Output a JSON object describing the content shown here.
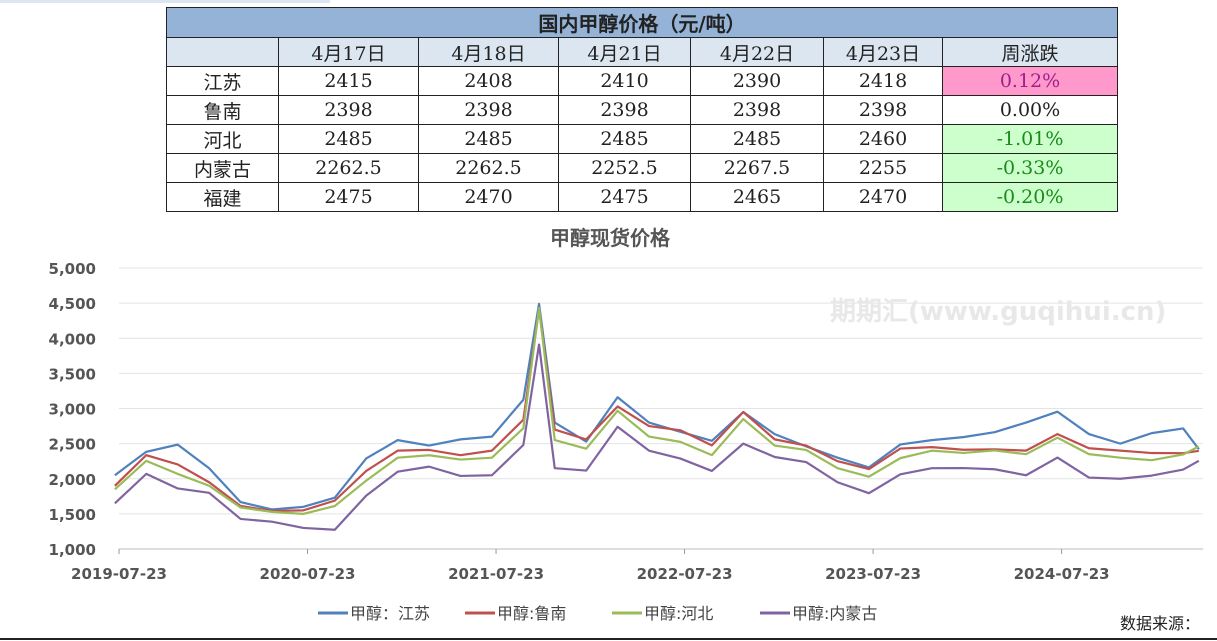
{
  "table": {
    "title": "国内甲醇价格（元/吨）",
    "headers": [
      "",
      "4月17日",
      "4月18日",
      "4月21日",
      "4月22日",
      "4月23日",
      "周涨跌"
    ],
    "rows": [
      {
        "region": "江苏",
        "values": [
          "2415",
          "2408",
          "2410",
          "2390",
          "2418"
        ],
        "change": "0.12%",
        "status": "up"
      },
      {
        "region": "鲁南",
        "values": [
          "2398",
          "2398",
          "2398",
          "2398",
          "2398"
        ],
        "change": "0.00%",
        "status": "flat"
      },
      {
        "region": "河北",
        "values": [
          "2485",
          "2485",
          "2485",
          "2485",
          "2460"
        ],
        "change": "-1.01%",
        "status": "down"
      },
      {
        "region": "内蒙古",
        "values": [
          "2262.5",
          "2262.5",
          "2252.5",
          "2267.5",
          "2255"
        ],
        "change": "-0.33%",
        "status": "down"
      },
      {
        "region": "福建",
        "values": [
          "2475",
          "2470",
          "2475",
          "2465",
          "2470"
        ],
        "change": "-0.20%",
        "status": "down"
      }
    ]
  },
  "source_label": "数据来源：",
  "watermark": "期期汇(www.guqihui.cn)",
  "chart_data": {
    "type": "line",
    "title": "甲醇现货价格",
    "ylim": [
      1000,
      5000
    ],
    "yticks": [
      1000,
      1500,
      2000,
      2500,
      3000,
      3500,
      4000,
      4500,
      5000
    ],
    "ytick_labels": [
      "1,000",
      "1,500",
      "2,000",
      "2,500",
      "3,000",
      "3,500",
      "4,000",
      "4,500",
      "5,000"
    ],
    "xlim": [
      "2019-07-23",
      "2025-04-23"
    ],
    "xtick_labels": [
      "2019-07-23",
      "2020-07-23",
      "2021-07-23",
      "2022-07-23",
      "2023-07-23",
      "2024-07-23"
    ],
    "grid": true,
    "legend": "bottom",
    "x": [
      "2019-07",
      "2019-09",
      "2019-11",
      "2020-01",
      "2020-03",
      "2020-05",
      "2020-07",
      "2020-09",
      "2020-11",
      "2021-01",
      "2021-03",
      "2021-05",
      "2021-07",
      "2021-09",
      "2021-10",
      "2021-11",
      "2022-01",
      "2022-03",
      "2022-05",
      "2022-07",
      "2022-09",
      "2022-11",
      "2023-01",
      "2023-03",
      "2023-05",
      "2023-07",
      "2023-09",
      "2023-11",
      "2024-01",
      "2024-03",
      "2024-05",
      "2024-07",
      "2024-09",
      "2024-11",
      "2025-01",
      "2025-03",
      "2025-04"
    ],
    "series": [
      {
        "name": "甲醇：江苏",
        "color": "#4f81bd",
        "values": [
          2050,
          2350,
          2450,
          2150,
          1700,
          1600,
          1600,
          1700,
          2250,
          2550,
          2500,
          2600,
          2600,
          3100,
          4450,
          2800,
          2550,
          3200,
          2800,
          2650,
          2500,
          2950,
          2650,
          2500,
          2300,
          2150,
          2450,
          2550,
          2600,
          2700,
          2800,
          2950,
          2600,
          2500,
          2650,
          2750,
          2420
        ]
      },
      {
        "name": "甲醇:鲁南",
        "color": "#c0504d",
        "values": [
          1900,
          2300,
          2200,
          1950,
          1650,
          1550,
          1550,
          1650,
          2100,
          2400,
          2450,
          2350,
          2400,
          2800,
          4400,
          2700,
          2600,
          3050,
          2750,
          2650,
          2450,
          2950,
          2600,
          2500,
          2250,
          2100,
          2400,
          2450,
          2450,
          2450,
          2400,
          2600,
          2400,
          2400,
          2400,
          2400,
          2398
        ]
      },
      {
        "name": "甲醇:河北",
        "color": "#9bbb59",
        "values": [
          1850,
          2250,
          2100,
          1900,
          1600,
          1500,
          1500,
          1600,
          2000,
          2300,
          2350,
          2250,
          2300,
          2700,
          4450,
          2550,
          2450,
          2950,
          2600,
          2500,
          2350,
          2850,
          2500,
          2400,
          2150,
          2000,
          2300,
          2400,
          2400,
          2400,
          2350,
          2550,
          2350,
          2300,
          2300,
          2350,
          2460
        ]
      },
      {
        "name": "甲醇:内蒙古",
        "color": "#8064a2",
        "values": [
          1650,
          2100,
          1900,
          1800,
          1400,
          1350,
          1300,
          1300,
          1800,
          2100,
          2150,
          2000,
          2050,
          2500,
          3950,
          2150,
          2100,
          2700,
          2400,
          2300,
          2150,
          2500,
          2300,
          2200,
          1950,
          1800,
          2100,
          2150,
          2150,
          2100,
          2050,
          2300,
          2050,
          2000,
          2050,
          2100,
          2255
        ]
      }
    ]
  }
}
